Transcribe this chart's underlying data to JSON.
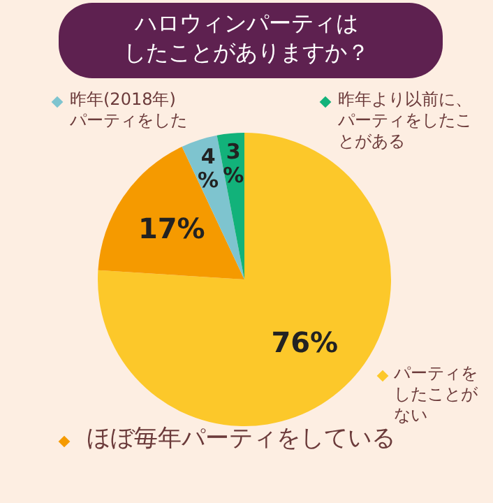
{
  "chart_data": {
    "type": "pie",
    "title": "ハロウィンパーティはしたことがありますか？",
    "categories": [
      "パーティをしたことがない",
      "ほぼ毎年パーティをしている",
      "昨年(2018年)パーティをした",
      "昨年より以前に、パーティをしたことがある"
    ],
    "values": [
      76,
      17,
      4,
      3
    ],
    "colors": [
      "#fcc82a",
      "#f59a00",
      "#7ec4cf",
      "#12b27a"
    ],
    "value_labels": [
      "76%",
      "17%",
      "4%",
      "3%"
    ],
    "legend": "right"
  }
}
